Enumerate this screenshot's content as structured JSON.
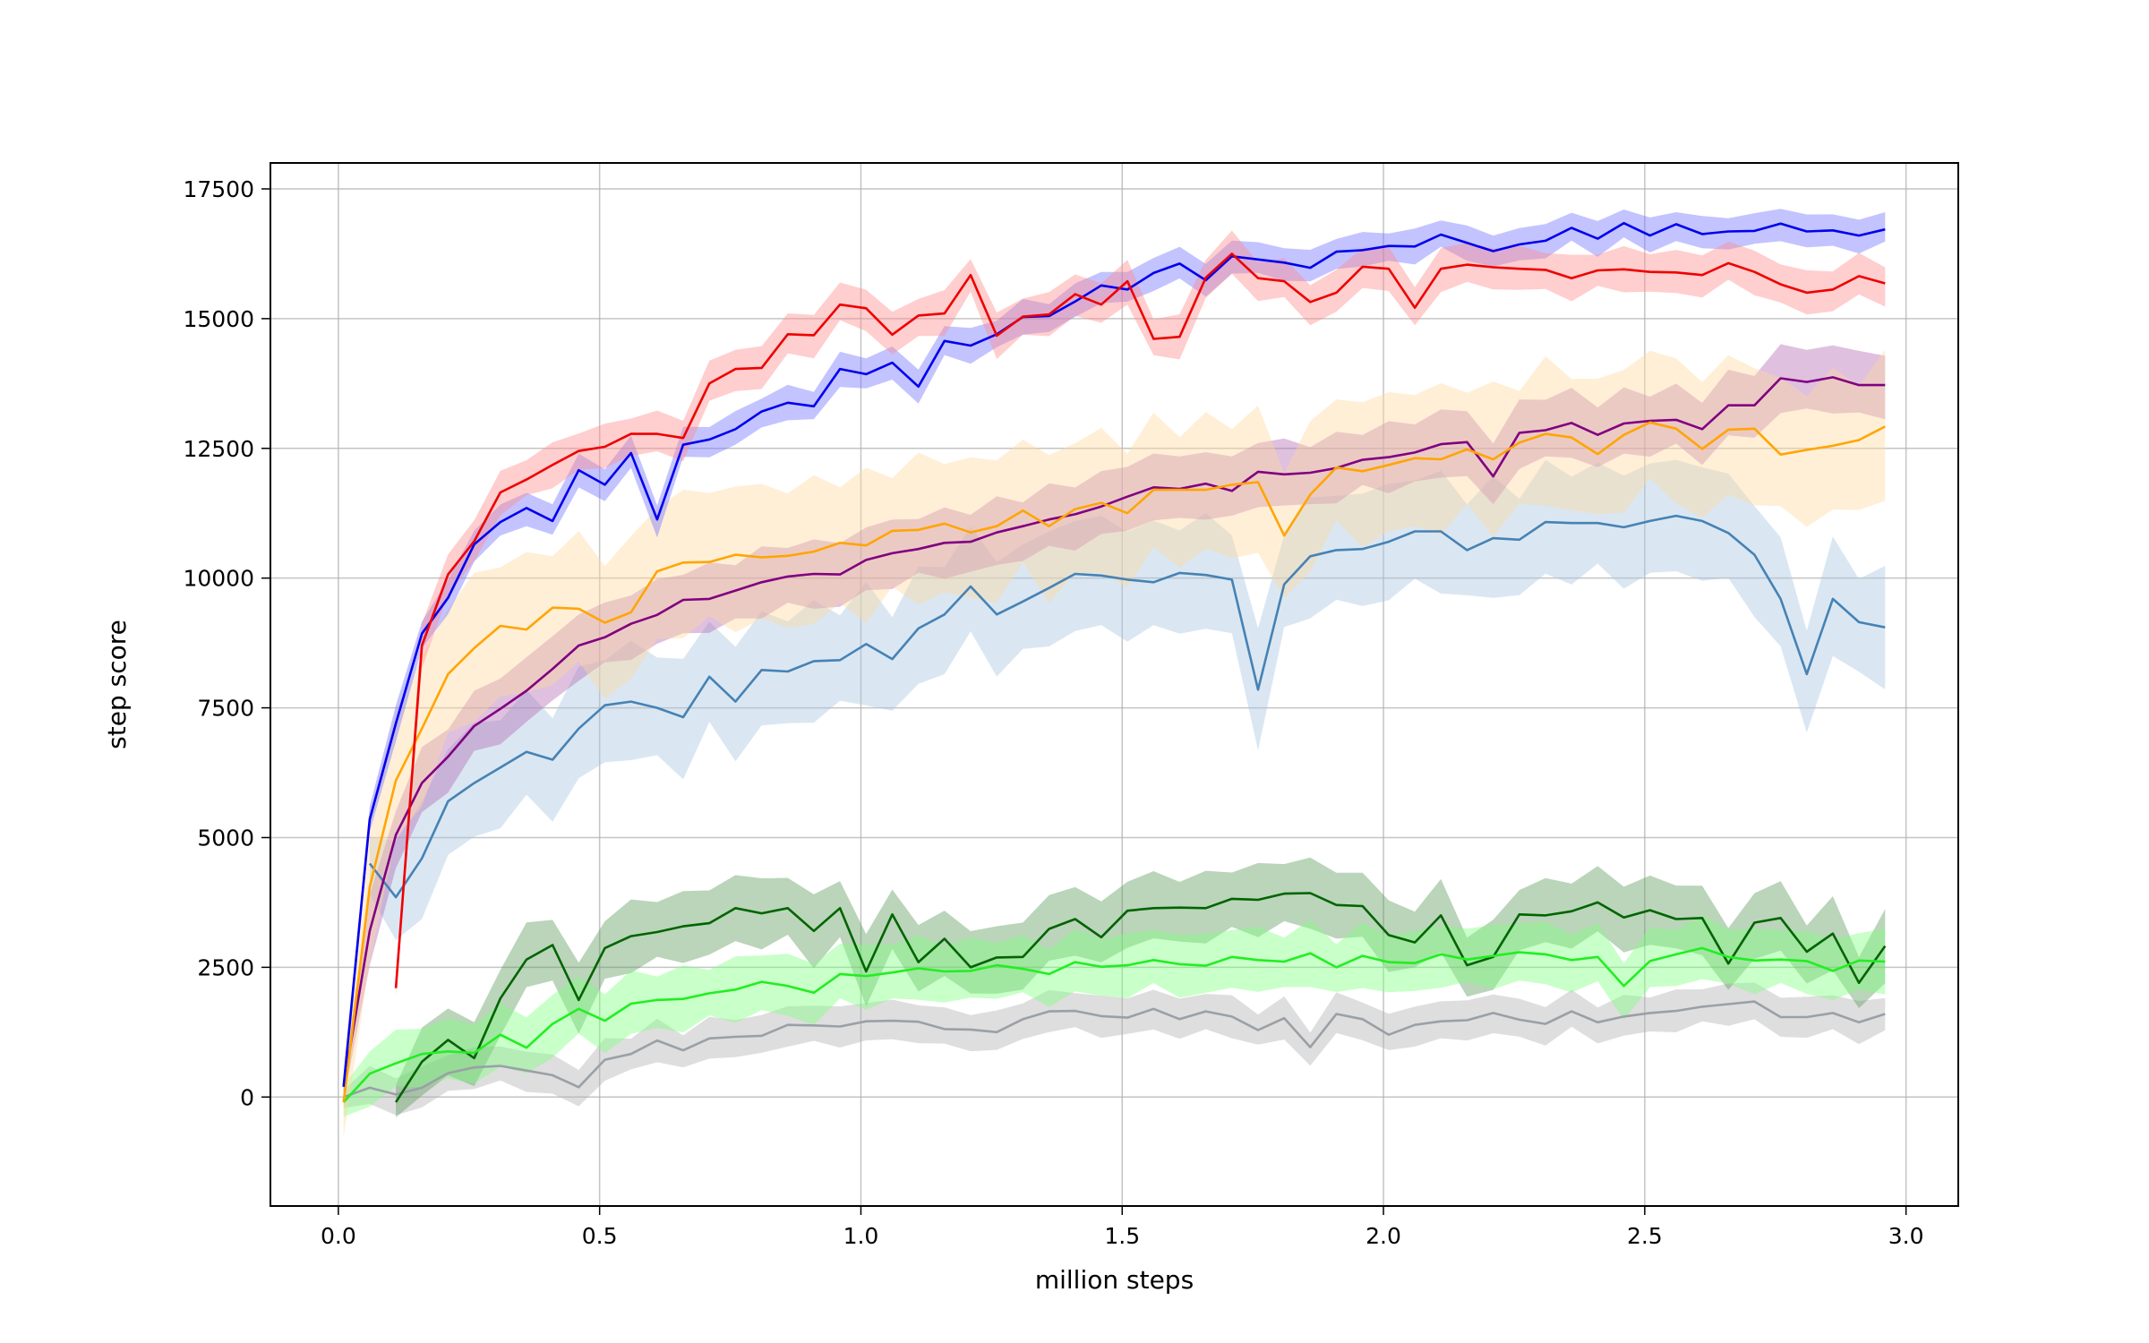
{
  "chart_data": {
    "type": "line",
    "title": "",
    "xlabel": "million steps",
    "ylabel": "step score",
    "xlim": [
      -0.13,
      3.1
    ],
    "ylim": [
      -2100,
      18000
    ],
    "xticks": [
      0.0,
      0.5,
      1.0,
      1.5,
      2.0,
      2.5,
      3.0
    ],
    "xtick_labels": [
      "0.0",
      "0.5",
      "1.0",
      "1.5",
      "2.0",
      "2.5",
      "3.0"
    ],
    "yticks": [
      0,
      2500,
      5000,
      7500,
      10000,
      12500,
      15000,
      17500
    ],
    "ytick_labels": [
      "0",
      "2500",
      "5000",
      "7500",
      "10000",
      "12500",
      "15000",
      "17500"
    ],
    "grid": true,
    "legend": "none",
    "series": [
      {
        "color": "#9aa0a6",
        "band_color": "#b0b0b0",
        "x": [
          0.01,
          0.06,
          0.11,
          0.16,
          0.21,
          0.26,
          0.31,
          0.36,
          0.41,
          0.46,
          0.51,
          0.56,
          0.61,
          0.66,
          0.71,
          0.76,
          0.81,
          0.86,
          0.91,
          0.96,
          1.01,
          1.06,
          1.11,
          1.16,
          1.21,
          1.26,
          1.31,
          1.36,
          1.41,
          1.46,
          1.51,
          1.56,
          1.61,
          1.66,
          1.71,
          1.76,
          1.81,
          1.86,
          1.91,
          1.96,
          2.01,
          2.06,
          2.11,
          2.16,
          2.21,
          2.26,
          2.31,
          2.36,
          2.41,
          2.46,
          2.51,
          2.56,
          2.61,
          2.66,
          2.71,
          2.76,
          2.81,
          2.86,
          2.91,
          2.96
        ],
        "values": [
          0,
          180,
          50,
          180,
          460,
          570,
          600,
          510,
          420,
          190,
          720,
          830,
          1090,
          900,
          1130,
          1160,
          1180,
          1390,
          1380,
          1360,
          1460,
          1470,
          1450,
          1310,
          1300,
          1250,
          1500,
          1650,
          1660,
          1560,
          1530,
          1700,
          1500,
          1650,
          1550,
          1290,
          1520,
          960,
          1600,
          1500,
          1200,
          1390,
          1460,
          1480,
          1620,
          1490,
          1410,
          1650,
          1440,
          1550,
          1620,
          1660,
          1740,
          1790,
          1840,
          1540,
          1540,
          1620,
          1440,
          1600
        ],
        "band": 420
      },
      {
        "color": "#006400",
        "band_color": "#5a9a5a",
        "x": [
          0.11,
          0.16,
          0.21,
          0.26,
          0.31,
          0.36,
          0.41,
          0.46,
          0.51,
          0.56,
          0.61,
          0.66,
          0.71,
          0.76,
          0.81,
          0.86,
          0.91,
          0.96,
          1.01,
          1.06,
          1.11,
          1.16,
          1.21,
          1.26,
          1.31,
          1.36,
          1.41,
          1.46,
          1.51,
          1.56,
          1.61,
          1.66,
          1.71,
          1.76,
          1.81,
          1.86,
          1.91,
          1.96,
          2.01,
          2.06,
          2.11,
          2.16,
          2.21,
          2.26,
          2.31,
          2.36,
          2.41,
          2.46,
          2.51,
          2.56,
          2.61,
          2.66,
          2.71,
          2.76,
          2.81,
          2.86,
          2.91,
          2.96
        ],
        "values": [
          -100,
          680,
          1100,
          750,
          1900,
          2650,
          2930,
          1870,
          2870,
          3100,
          3180,
          3290,
          3350,
          3640,
          3540,
          3640,
          3200,
          3640,
          2420,
          3520,
          2600,
          3050,
          2500,
          2690,
          2700,
          3240,
          3430,
          3080,
          3590,
          3640,
          3650,
          3640,
          3820,
          3800,
          3920,
          3930,
          3700,
          3680,
          3120,
          2980,
          3500,
          2540,
          2700,
          3520,
          3500,
          3580,
          3750,
          3460,
          3600,
          3430,
          3450,
          2570,
          3360,
          3450,
          2800,
          3150,
          2200,
          2910
        ],
        "band": 720
      },
      {
        "color": "#22ee22",
        "band_color": "#7fff7f",
        "x": [
          0.01,
          0.06,
          0.11,
          0.16,
          0.21,
          0.26,
          0.31,
          0.36,
          0.41,
          0.46,
          0.51,
          0.56,
          0.61,
          0.66,
          0.71,
          0.76,
          0.81,
          0.86,
          0.91,
          0.96,
          1.01,
          1.06,
          1.11,
          1.16,
          1.21,
          1.26,
          1.31,
          1.36,
          1.41,
          1.46,
          1.51,
          1.56,
          1.61,
          1.66,
          1.71,
          1.76,
          1.81,
          1.86,
          1.91,
          1.96,
          2.01,
          2.06,
          2.11,
          2.16,
          2.21,
          2.26,
          2.31,
          2.36,
          2.41,
          2.46,
          2.51,
          2.56,
          2.61,
          2.66,
          2.71,
          2.76,
          2.81,
          2.86,
          2.91,
          2.96
        ],
        "values": [
          -100,
          450,
          650,
          830,
          880,
          850,
          1200,
          950,
          1410,
          1700,
          1470,
          1800,
          1870,
          1890,
          2000,
          2070,
          2220,
          2140,
          2010,
          2370,
          2330,
          2400,
          2480,
          2420,
          2430,
          2540,
          2470,
          2370,
          2600,
          2510,
          2540,
          2640,
          2560,
          2530,
          2700,
          2640,
          2610,
          2770,
          2500,
          2720,
          2600,
          2580,
          2750,
          2650,
          2720,
          2790,
          2750,
          2640,
          2700,
          2140,
          2620,
          2750,
          2870,
          2700,
          2630,
          2650,
          2620,
          2430,
          2630,
          2610
        ],
        "band": 650
      },
      {
        "color": "#4682b4",
        "band_color": "#a8c6e0",
        "x": [
          0.06,
          0.11,
          0.16,
          0.21,
          0.26,
          0.31,
          0.36,
          0.41,
          0.46,
          0.51,
          0.56,
          0.61,
          0.66,
          0.71,
          0.76,
          0.81,
          0.86,
          0.91,
          0.96,
          1.01,
          1.06,
          1.11,
          1.16,
          1.21,
          1.26,
          1.31,
          1.36,
          1.41,
          1.46,
          1.51,
          1.56,
          1.61,
          1.66,
          1.71,
          1.76,
          1.81,
          1.86,
          1.91,
          1.96,
          2.01,
          2.06,
          2.11,
          2.16,
          2.21,
          2.26,
          2.31,
          2.36,
          2.41,
          2.46,
          2.51,
          2.56,
          2.61,
          2.66,
          2.71,
          2.76,
          2.81,
          2.86,
          2.91,
          2.96
        ],
        "values": [
          4500,
          3850,
          4600,
          5700,
          6050,
          6350,
          6650,
          6500,
          7100,
          7550,
          7620,
          7500,
          7320,
          8100,
          7620,
          8230,
          8200,
          8400,
          8420,
          8730,
          8440,
          9030,
          9300,
          9840,
          9300,
          9550,
          9810,
          10080,
          10050,
          9970,
          9920,
          10100,
          10060,
          9970,
          7850,
          9880,
          10420,
          10540,
          10560,
          10700,
          10900,
          10900,
          10540,
          10770,
          10740,
          11080,
          11060,
          11060,
          10980,
          11100,
          11200,
          11100,
          10870,
          10450,
          9600,
          8150,
          9600,
          9150,
          9050
        ],
        "band": 1200
      },
      {
        "color": "#800080",
        "band_color": "#b26ab2",
        "x": [
          0.01,
          0.06,
          0.11,
          0.16,
          0.21,
          0.26,
          0.31,
          0.36,
          0.41,
          0.46,
          0.51,
          0.56,
          0.61,
          0.66,
          0.71,
          0.76,
          0.81,
          0.86,
          0.91,
          0.96,
          1.01,
          1.06,
          1.11,
          1.16,
          1.21,
          1.26,
          1.31,
          1.36,
          1.41,
          1.46,
          1.51,
          1.56,
          1.61,
          1.66,
          1.71,
          1.76,
          1.81,
          1.86,
          1.91,
          1.96,
          2.01,
          2.06,
          2.11,
          2.16,
          2.21,
          2.26,
          2.31,
          2.36,
          2.41,
          2.46,
          2.51,
          2.56,
          2.61,
          2.66,
          2.71,
          2.76,
          2.81,
          2.86,
          2.91,
          2.96
        ],
        "values": [
          200,
          3200,
          5050,
          6050,
          6560,
          7150,
          7480,
          7830,
          8250,
          8700,
          8860,
          9120,
          9290,
          9580,
          9600,
          9760,
          9920,
          10030,
          10080,
          10070,
          10350,
          10480,
          10560,
          10680,
          10700,
          10880,
          11000,
          11130,
          11230,
          11380,
          11570,
          11750,
          11720,
          11820,
          11680,
          12050,
          12000,
          12030,
          12120,
          12280,
          12330,
          12420,
          12580,
          12620,
          11960,
          12800,
          12850,
          12990,
          12760,
          12980,
          13030,
          13050,
          12870,
          13330,
          13330,
          13850,
          13780,
          13870,
          13720,
          13720
        ],
        "band": 700
      },
      {
        "color": "#ffa500",
        "band_color": "#ffd9a0",
        "x": [
          0.01,
          0.06,
          0.11,
          0.16,
          0.21,
          0.26,
          0.31,
          0.36,
          0.41,
          0.46,
          0.51,
          0.56,
          0.61,
          0.66,
          0.71,
          0.76,
          0.81,
          0.86,
          0.91,
          0.96,
          1.01,
          1.06,
          1.11,
          1.16,
          1.21,
          1.26,
          1.31,
          1.36,
          1.41,
          1.46,
          1.51,
          1.56,
          1.61,
          1.66,
          1.71,
          1.76,
          1.81,
          1.86,
          1.91,
          1.96,
          2.01,
          2.06,
          2.11,
          2.16,
          2.21,
          2.26,
          2.31,
          2.36,
          2.41,
          2.46,
          2.51,
          2.56,
          2.61,
          2.66,
          2.71,
          2.76,
          2.81,
          2.86,
          2.91,
          2.96
        ],
        "values": [
          -100,
          4050,
          6100,
          7100,
          8150,
          8650,
          9080,
          9010,
          9430,
          9410,
          9140,
          9340,
          10130,
          10300,
          10310,
          10450,
          10400,
          10430,
          10510,
          10680,
          10630,
          10910,
          10930,
          11050,
          10880,
          11000,
          11300,
          11000,
          11330,
          11450,
          11250,
          11700,
          11700,
          11700,
          11800,
          11850,
          10820,
          11610,
          12130,
          12060,
          12180,
          12310,
          12290,
          12480,
          12290,
          12610,
          12780,
          12710,
          12390,
          12760,
          13000,
          12880,
          12490,
          12860,
          12880,
          12380,
          12470,
          12550,
          12660,
          12920
        ],
        "band": 1500
      },
      {
        "color": "#0000ee",
        "band_color": "#7070ff",
        "x": [
          0.01,
          0.06,
          0.11,
          0.16,
          0.21,
          0.26,
          0.31,
          0.36,
          0.41,
          0.46,
          0.51,
          0.56,
          0.61,
          0.66,
          0.71,
          0.76,
          0.81,
          0.86,
          0.91,
          0.96,
          1.01,
          1.06,
          1.11,
          1.16,
          1.21,
          1.26,
          1.31,
          1.36,
          1.41,
          1.46,
          1.51,
          1.56,
          1.61,
          1.66,
          1.71,
          1.76,
          1.81,
          1.86,
          1.91,
          1.96,
          2.01,
          2.06,
          2.11,
          2.16,
          2.21,
          2.26,
          2.31,
          2.36,
          2.41,
          2.46,
          2.51,
          2.56,
          2.61,
          2.66,
          2.71,
          2.76,
          2.81,
          2.86,
          2.91,
          2.96
        ],
        "values": [
          200,
          5350,
          7200,
          8930,
          9620,
          10650,
          11080,
          11350,
          11100,
          12080,
          11800,
          12410,
          11130,
          12570,
          12670,
          12870,
          13210,
          13380,
          13310,
          14030,
          13930,
          14150,
          13690,
          14570,
          14480,
          14700,
          15030,
          15050,
          15330,
          15640,
          15560,
          15880,
          16060,
          15740,
          16200,
          16140,
          16080,
          15980,
          16290,
          16320,
          16400,
          16390,
          16620,
          16460,
          16300,
          16430,
          16500,
          16750,
          16540,
          16840,
          16600,
          16820,
          16630,
          16680,
          16690,
          16830,
          16680,
          16700,
          16600,
          16720
        ],
        "band": 350
      },
      {
        "color": "#ee0000",
        "band_color": "#ff8a8a",
        "x": [
          0.11,
          0.16,
          0.21,
          0.26,
          0.31,
          0.36,
          0.41,
          0.46,
          0.51,
          0.56,
          0.61,
          0.66,
          0.71,
          0.76,
          0.81,
          0.86,
          0.91,
          0.96,
          1.01,
          1.06,
          1.11,
          1.16,
          1.21,
          1.26,
          1.31,
          1.36,
          1.41,
          1.46,
          1.51,
          1.56,
          1.61,
          1.66,
          1.71,
          1.76,
          1.81,
          1.86,
          1.91,
          1.96,
          2.01,
          2.06,
          2.11,
          2.16,
          2.21,
          2.26,
          2.31,
          2.36,
          2.41,
          2.46,
          2.51,
          2.56,
          2.61,
          2.66,
          2.71,
          2.76,
          2.81,
          2.86,
          2.91,
          2.96
        ],
        "values": [
          2100,
          8700,
          10070,
          10710,
          11650,
          11900,
          12180,
          12450,
          12530,
          12780,
          12780,
          12700,
          13750,
          14030,
          14050,
          14700,
          14680,
          15270,
          15200,
          14690,
          15060,
          15100,
          15840,
          14670,
          15040,
          15080,
          15470,
          15270,
          15720,
          14610,
          14650,
          15790,
          16250,
          15780,
          15720,
          15320,
          15500,
          16000,
          15960,
          15210,
          15960,
          16040,
          15990,
          15960,
          15940,
          15780,
          15930,
          15950,
          15900,
          15890,
          15840,
          16070,
          15900,
          15660,
          15500,
          15560,
          15820,
          15680
        ],
        "band": 450
      }
    ]
  }
}
